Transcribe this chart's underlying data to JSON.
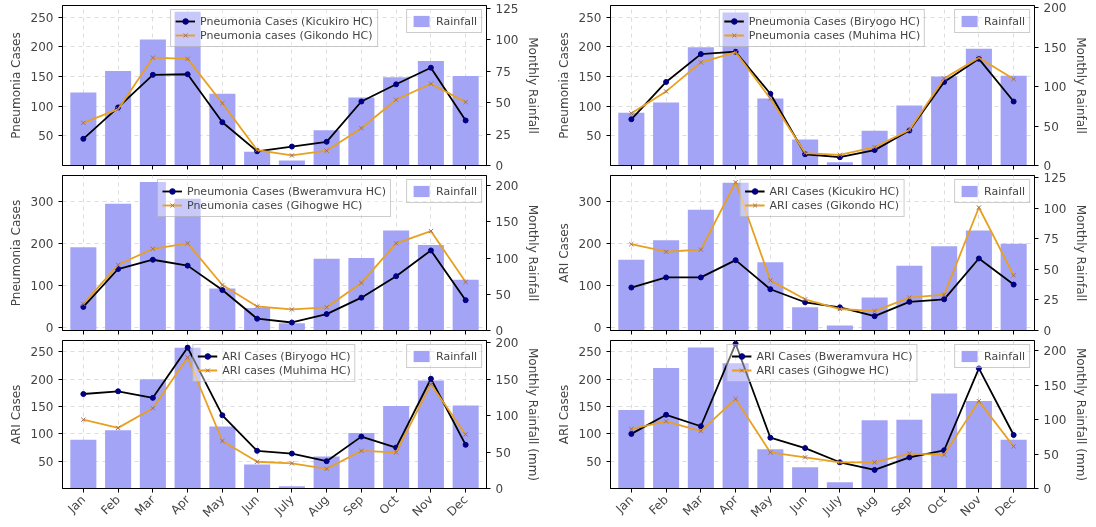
{
  "chart_data": [
    {
      "type": "bar",
      "ylabel": "Pneumonia Cases",
      "y2label": "Monthly Rainfall",
      "categories": [
        null,
        null,
        null,
        null,
        null,
        null,
        null,
        null,
        null,
        null,
        null,
        null
      ],
      "ylim": [
        0,
        270
      ],
      "yticks": [
        50,
        100,
        150,
        200,
        250
      ],
      "y2lim": [
        0,
        127
      ],
      "y2ticks": [
        0,
        25,
        50,
        75,
        100,
        125
      ],
      "grid": true,
      "legend": "top",
      "line_style": "solid",
      "series": [
        {
          "name": "Rainfall",
          "axis": "y2",
          "color": "#a4a4f7",
          "values": [
            58,
            75,
            100,
            122,
            57,
            11,
            4,
            28,
            54,
            70,
            83,
            71
          ]
        },
        {
          "name": "Pneumonia Cases (Kicukiro HC)",
          "type": "line",
          "marker": "circle",
          "color": "#000000",
          "values": [
            45,
            98,
            153,
            154,
            73,
            24,
            32,
            40,
            108,
            137,
            165,
            76
          ]
        },
        {
          "name": "Pneumonia cases (Gikondo HC)",
          "type": "line",
          "marker": "cross",
          "color": "#e8a020",
          "values": [
            72,
            95,
            182,
            180,
            105,
            26,
            17,
            25,
            63,
            111,
            138,
            107
          ]
        }
      ]
    },
    {
      "type": "bar",
      "ylabel": "Pneumonia Cases",
      "y2label": "Monthly Rainfall",
      "categories": [
        null,
        null,
        null,
        null,
        null,
        null,
        null,
        null,
        null,
        null,
        null,
        null
      ],
      "ylim": [
        0,
        270
      ],
      "yticks": [
        50,
        100,
        150,
        200,
        250
      ],
      "y2lim": [
        0,
        203
      ],
      "y2ticks": [
        0,
        50,
        100,
        150,
        200
      ],
      "grid": true,
      "legend": "top",
      "line_style": "solid",
      "series": [
        {
          "name": "Rainfall",
          "axis": "y2",
          "color": "#a4a4f7",
          "values": [
            67,
            80,
            150,
            194,
            85,
            33,
            4,
            44,
            76,
            113,
            148,
            114
          ]
        },
        {
          "name": "Pneumonia Cases (Biryogo HC)",
          "type": "line",
          "marker": "circle",
          "color": "#000000",
          "values": [
            78,
            141,
            188,
            192,
            121,
            19,
            14,
            26,
            59,
            141,
            180,
            108
          ]
        },
        {
          "name": "Pneumonia cases (Muhima HC)",
          "type": "line",
          "marker": "cross",
          "color": "#e8a020",
          "values": [
            88,
            125,
            174,
            191,
            113,
            21,
            18,
            31,
            60,
            147,
            182,
            146
          ]
        }
      ]
    },
    {
      "type": "bar",
      "ylabel": "Pneumonia Cases",
      "y2label": "Monthly Rainfall",
      "categories": [
        null,
        null,
        null,
        null,
        null,
        null,
        null,
        null,
        null,
        null,
        null,
        null
      ],
      "ylim": [
        -6,
        362
      ],
      "yticks": [
        0,
        100,
        200,
        300
      ],
      "y2lim": [
        0,
        214
      ],
      "y2ticks": [
        0,
        50,
        100,
        150,
        200
      ],
      "grid": true,
      "legend": "top",
      "line_style": "solid",
      "series": [
        {
          "name": "Rainfall",
          "axis": "y2",
          "color": "#a4a4f7",
          "values": [
            115,
            175,
            205,
            182,
            58,
            31,
            10,
            99,
            100,
            138,
            118,
            70
          ]
        },
        {
          "name": "Pneumonia Cases (Bweramvura HC)",
          "type": "line",
          "marker": "circle",
          "color": "#000000",
          "values": [
            50,
            140,
            162,
            148,
            90,
            22,
            13,
            33,
            72,
            123,
            184,
            66
          ]
        },
        {
          "name": "Pneumonia cases (Gihogwe HC)",
          "type": "line",
          "marker": "cross",
          "color": "#e8a020",
          "values": [
            57,
            150,
            188,
            201,
            102,
            51,
            44,
            49,
            107,
            201,
            230,
            109
          ]
        }
      ]
    },
    {
      "type": "bar",
      "ylabel": "ARI Cases",
      "y2label": "Monthly Rainfall",
      "categories": [
        null,
        null,
        null,
        null,
        null,
        null,
        null,
        null,
        null,
        null,
        null,
        null
      ],
      "ylim": [
        -6,
        362
      ],
      "yticks": [
        0,
        100,
        200,
        300
      ],
      "y2lim": [
        0,
        127
      ],
      "y2ticks": [
        0,
        25,
        50,
        75,
        100,
        125
      ],
      "grid": true,
      "legend": "top",
      "line_style": "solid",
      "series": [
        {
          "name": "Rainfall",
          "axis": "y2",
          "color": "#a4a4f7",
          "values": [
            58,
            74,
            99,
            121,
            56,
            19,
            4,
            27,
            53,
            69,
            82,
            71
          ]
        },
        {
          "name": "ARI Cases (Kicukiro HC)",
          "type": "line",
          "marker": "circle",
          "color": "#000000",
          "values": [
            96,
            120,
            120,
            161,
            92,
            61,
            49,
            28,
            62,
            68,
            165,
            103
          ]
        },
        {
          "name": "ARI cases (Gikondo HC)",
          "type": "line",
          "marker": "cross",
          "color": "#e8a020",
          "values": [
            199,
            181,
            186,
            346,
            113,
            68,
            45,
            40,
            72,
            79,
            286,
            125
          ]
        }
      ]
    },
    {
      "type": "bar",
      "ylabel": "ARI Cases",
      "y2label": "Monthly Rainfall (mm)",
      "categories": [
        "Jan",
        "Feb",
        "Mar",
        "Apr",
        "May",
        "Jun",
        "July",
        "Aug",
        "Sep",
        "Oct",
        "Nov",
        "Dec"
      ],
      "ylim": [
        0,
        271
      ],
      "yticks": [
        50,
        100,
        150,
        200,
        250
      ],
      "y2lim": [
        0,
        203
      ],
      "y2ticks": [
        0,
        50,
        100,
        150,
        200
      ],
      "grid": true,
      "legend": "top",
      "line_style": "solid",
      "series": [
        {
          "name": "Rainfall",
          "axis": "y2",
          "color": "#a4a4f7",
          "values": [
            67,
            80,
            150,
            193,
            85,
            33,
            3,
            44,
            76,
            113,
            148,
            114
          ]
        },
        {
          "name": "ARI Cases (Biryogo HC)",
          "type": "line",
          "marker": "circle",
          "color": "#000000",
          "values": [
            173,
            178,
            166,
            258,
            134,
            69,
            64,
            50,
            95,
            75,
            201,
            80
          ]
        },
        {
          "name": "ARI cases (Muhima HC)",
          "type": "line",
          "marker": "cross",
          "color": "#e8a020",
          "values": [
            126,
            111,
            147,
            240,
            87,
            49,
            46,
            36,
            69,
            66,
            191,
            99
          ]
        }
      ]
    },
    {
      "type": "bar",
      "ylabel": "ARI Cases",
      "y2label": "Monthly Rainfall (mm)",
      "categories": [
        "Jan",
        "Feb",
        "Mar",
        "Apr",
        "May",
        "Jun",
        "July",
        "Aug",
        "Sep",
        "Oct",
        "Nov",
        "Dec"
      ],
      "ylim": [
        0,
        271
      ],
      "yticks": [
        50,
        100,
        150,
        200,
        250
      ],
      "y2lim": [
        0,
        215
      ],
      "y2ticks": [
        0,
        50,
        100,
        150,
        200
      ],
      "grid": true,
      "legend": "top",
      "line_style": "solid",
      "series": [
        {
          "name": "Rainfall",
          "axis": "y2",
          "color": "#a4a4f7",
          "values": [
            114,
            175,
            205,
            182,
            57,
            31,
            9,
            99,
            100,
            138,
            127,
            71
          ]
        },
        {
          "name": "ARI Cases (Bweramvura HC)",
          "type": "line",
          "marker": "circle",
          "color": "#000000",
          "values": [
            100,
            135,
            114,
            265,
            93,
            74,
            48,
            34,
            57,
            70,
            220,
            98
          ]
        },
        {
          "name": "ARI cases (Gihogwe HC)",
          "type": "line",
          "marker": "cross",
          "color": "#e8a020",
          "values": [
            109,
            123,
            105,
            164,
            66,
            57,
            48,
            48,
            64,
            62,
            160,
            77
          ]
        }
      ]
    }
  ]
}
